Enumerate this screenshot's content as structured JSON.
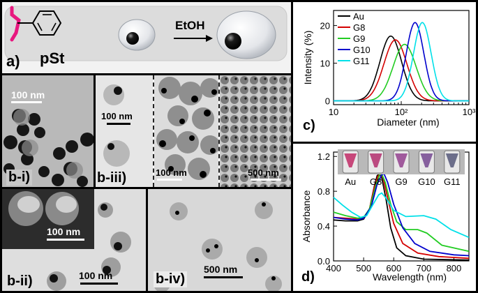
{
  "panel_a": {
    "label": "a)",
    "polymer": "pSt",
    "solvent": "EtOH"
  },
  "panel_b_i": {
    "label": "b-i)",
    "scale_bar": "100 nm"
  },
  "panel_b_ii": {
    "label": "b-ii)",
    "scale_bar_inset": "100 nm",
    "scale_bar_main": "100 nm"
  },
  "panel_b_iii": {
    "label": "b-iii)",
    "scale_bar_left": "100 nm",
    "scale_bar_mid": "100 nm",
    "scale_bar_right": "500 nm"
  },
  "panel_b_iv": {
    "label": "b-iv)",
    "scale_bar": "500 nm"
  },
  "chart_c": {
    "label": "c)",
    "type": "line",
    "xlabel": "Diameter (nm)",
    "ylabel": "Intensity (%)",
    "x_scale": "log",
    "xlim": [
      10,
      1000
    ],
    "ylim": [
      -1,
      24
    ],
    "x_ticks": [
      {
        "value": 10,
        "label": "10"
      },
      {
        "value": 100,
        "label": "10²"
      },
      {
        "value": 1000,
        "label": "10³"
      }
    ],
    "y_ticks": [
      {
        "value": 0,
        "label": "0"
      },
      {
        "value": 10,
        "label": "10"
      },
      {
        "value": 20,
        "label": "20"
      }
    ],
    "legend_placement": "top-left",
    "series": [
      {
        "name": "Au",
        "color": "#000000",
        "peak": 70,
        "height": 17.2,
        "sigma": 0.16
      },
      {
        "name": "G8",
        "color": "#d40000",
        "peak": 82,
        "height": 16.2,
        "sigma": 0.17
      },
      {
        "name": "G9",
        "color": "#22cc22",
        "peak": 112,
        "height": 15.0,
        "sigma": 0.17
      },
      {
        "name": "G10",
        "color": "#0000cc",
        "peak": 160,
        "height": 20.8,
        "sigma": 0.13
      },
      {
        "name": "G11",
        "color": "#00e0e8",
        "peak": 205,
        "height": 20.8,
        "sigma": 0.13
      }
    ]
  },
  "chart_d": {
    "label": "d)",
    "type": "line",
    "xlabel": "Wavelength (nm)",
    "ylabel": "Absorbance",
    "xlim": [
      400,
      850
    ],
    "ylim": [
      0,
      1.25
    ],
    "x_ticks": [
      {
        "value": 400,
        "label": "400"
      },
      {
        "value": 500,
        "label": "500"
      },
      {
        "value": 600,
        "label": "600"
      },
      {
        "value": 700,
        "label": "700"
      },
      {
        "value": 800,
        "label": "800"
      }
    ],
    "y_ticks": [
      {
        "value": 0,
        "label": "0.0"
      },
      {
        "value": 0.4,
        "label": "0.4"
      },
      {
        "value": 0.8,
        "label": "0.8"
      },
      {
        "value": 1.2,
        "label": "1.2"
      }
    ],
    "vial_labels": [
      "Au",
      "G8",
      "G9",
      "G10",
      "G11"
    ],
    "vial_colors": [
      "#c7487a",
      "#bb4a80",
      "#a05a9c",
      "#86609e",
      "#6c6e8a"
    ],
    "series": [
      {
        "name": "Au",
        "color": "#000000",
        "points": [
          [
            400,
            0.47
          ],
          [
            440,
            0.46
          ],
          [
            480,
            0.46
          ],
          [
            500,
            0.48
          ],
          [
            520,
            0.6
          ],
          [
            535,
            0.85
          ],
          [
            545,
            0.98
          ],
          [
            552,
            1.0
          ],
          [
            560,
            0.96
          ],
          [
            575,
            0.7
          ],
          [
            590,
            0.38
          ],
          [
            610,
            0.15
          ],
          [
            640,
            0.06
          ],
          [
            700,
            0.02
          ],
          [
            850,
            0.01
          ]
        ]
      },
      {
        "name": "G8",
        "color": "#d40000",
        "points": [
          [
            400,
            0.5
          ],
          [
            440,
            0.49
          ],
          [
            480,
            0.48
          ],
          [
            500,
            0.49
          ],
          [
            520,
            0.6
          ],
          [
            535,
            0.84
          ],
          [
            547,
            0.97
          ],
          [
            555,
            1.0
          ],
          [
            565,
            0.95
          ],
          [
            580,
            0.72
          ],
          [
            600,
            0.43
          ],
          [
            630,
            0.2
          ],
          [
            680,
            0.09
          ],
          [
            750,
            0.05
          ],
          [
            850,
            0.03
          ]
        ]
      },
      {
        "name": "G9",
        "color": "#22cc22",
        "points": [
          [
            400,
            0.56
          ],
          [
            440,
            0.52
          ],
          [
            480,
            0.49
          ],
          [
            500,
            0.5
          ],
          [
            520,
            0.6
          ],
          [
            540,
            0.86
          ],
          [
            553,
            0.99
          ],
          [
            560,
            1.0
          ],
          [
            572,
            0.9
          ],
          [
            590,
            0.65
          ],
          [
            610,
            0.45
          ],
          [
            640,
            0.36
          ],
          [
            680,
            0.36
          ],
          [
            710,
            0.32
          ],
          [
            760,
            0.18
          ],
          [
            850,
            0.11
          ]
        ]
      },
      {
        "name": "G10",
        "color": "#0000cc",
        "points": [
          [
            400,
            0.5
          ],
          [
            440,
            0.48
          ],
          [
            480,
            0.47
          ],
          [
            500,
            0.49
          ],
          [
            525,
            0.62
          ],
          [
            545,
            0.88
          ],
          [
            560,
            0.99
          ],
          [
            568,
            1.0
          ],
          [
            580,
            0.9
          ],
          [
            600,
            0.65
          ],
          [
            630,
            0.38
          ],
          [
            670,
            0.2
          ],
          [
            720,
            0.11
          ],
          [
            800,
            0.07
          ],
          [
            850,
            0.06
          ]
        ]
      },
      {
        "name": "G11",
        "color": "#00e0e8",
        "points": [
          [
            400,
            0.73
          ],
          [
            430,
            0.64
          ],
          [
            460,
            0.56
          ],
          [
            490,
            0.5
          ],
          [
            510,
            0.52
          ],
          [
            530,
            0.64
          ],
          [
            550,
            0.76
          ],
          [
            560,
            0.78
          ],
          [
            575,
            0.72
          ],
          [
            600,
            0.58
          ],
          [
            640,
            0.51
          ],
          [
            700,
            0.52
          ],
          [
            740,
            0.48
          ],
          [
            790,
            0.36
          ],
          [
            850,
            0.27
          ]
        ]
      }
    ]
  }
}
